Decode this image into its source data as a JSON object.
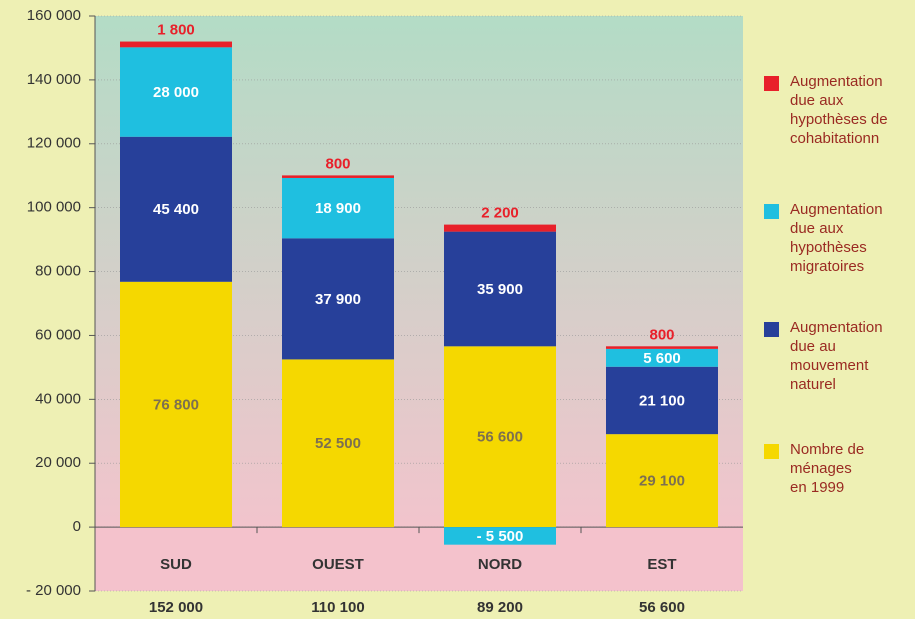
{
  "chart_data": {
    "type": "stacked-bar",
    "categories": [
      "SUD",
      "OUEST",
      "NORD",
      "EST"
    ],
    "series": [
      {
        "name": "Nombre de\nménages\nen 1999",
        "color": "#f5d800",
        "label_color": "#7d7050",
        "values": [
          76800,
          52500,
          56600,
          29100
        ],
        "value_labels": [
          "76 800",
          "52 500",
          "56 600",
          "29 100"
        ]
      },
      {
        "name": "Augmentation\ndue au\nmouvement\nnaturel",
        "color": "#27409a",
        "label_color": "#ffffff",
        "values": [
          45400,
          37900,
          35900,
          21100
        ],
        "value_labels": [
          "45 400",
          "37 900",
          "35 900",
          "21 100"
        ]
      },
      {
        "name": "Augmentation\ndue aux\nhypothèses\nmigratoires",
        "color": "#1fbfe0",
        "label_color": "#ffffff",
        "values": [
          28000,
          18900,
          -5500,
          5600
        ],
        "value_labels": [
          "28 000",
          "18 900",
          "- 5 500",
          "5 600"
        ]
      },
      {
        "name": "Augmentation\ndue aux\nhypothèses de\ncohabitationn",
        "color": "#e8202a",
        "label_color": "#e8202a",
        "values": [
          1800,
          800,
          2200,
          800
        ],
        "value_labels": [
          "1 800",
          "800",
          "2 200",
          "800"
        ]
      }
    ],
    "totals": [
      152000,
      110100,
      89200,
      56600
    ],
    "total_labels": [
      "152 000",
      "110 100",
      "89 200",
      "56 600"
    ],
    "ylim": [
      -20000,
      160000
    ],
    "yticks": [
      {
        "value": -20000,
        "label": "- 20 000"
      },
      0,
      {
        "value": 20000,
        "label": "20 000"
      },
      {
        "value": 40000,
        "label": "40 000"
      },
      {
        "value": 60000,
        "label": "60 000"
      },
      {
        "value": 80000,
        "label": "80 000"
      },
      {
        "value": 100000,
        "label": "100 000"
      },
      {
        "value": 120000,
        "label": "120 000"
      },
      {
        "value": 140000,
        "label": "140 000"
      },
      {
        "value": 160000,
        "label": "160 000"
      }
    ],
    "grid": true
  }
}
